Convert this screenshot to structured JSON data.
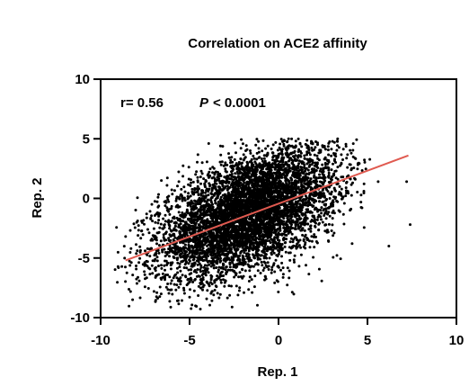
{
  "chart_data": {
    "type": "scatter",
    "title": "Correlation on ACE2 affinity",
    "xlabel": "Rep. 1",
    "ylabel": "Rep. 2",
    "xlim": [
      -10,
      10
    ],
    "ylim": [
      -10,
      10
    ],
    "xticks": [
      -10,
      -5,
      0,
      5,
      10
    ],
    "yticks": [
      -10,
      -5,
      0,
      5,
      10
    ],
    "annotation": {
      "r_label": "r= 0.56",
      "p_symbol": "P",
      "p_value": "< 0.0001"
    },
    "series": [
      {
        "color": "#000000",
        "approximate_point_count": 6000,
        "points": [
          [
            -8.2,
            -8.5
          ],
          [
            -7.9,
            -3.1
          ],
          [
            -7.5,
            -4.4
          ],
          [
            -7.0,
            -7.8
          ],
          [
            -6.8,
            -1.2
          ],
          [
            -6.4,
            -2.2
          ],
          [
            -6.0,
            -6.9
          ],
          [
            -5.6,
            1.4
          ],
          [
            -5.1,
            -0.4
          ],
          [
            -4.9,
            -5.7
          ],
          [
            -4.5,
            0.3
          ],
          [
            -4.2,
            -3.3
          ],
          [
            -3.9,
            2.2
          ],
          [
            -3.5,
            -6.8
          ],
          [
            -3.1,
            -1.7
          ],
          [
            -2.7,
            3.0
          ],
          [
            -2.3,
            -0.2
          ],
          [
            -2.0,
            -5.2
          ],
          [
            -1.6,
            1.5
          ],
          [
            -1.2,
            -2.6
          ],
          [
            -0.8,
            3.6
          ],
          [
            -0.4,
            -4.1
          ],
          [
            0.0,
            0.6
          ],
          [
            0.4,
            4.2
          ],
          [
            0.8,
            -1.9
          ],
          [
            1.2,
            2.4
          ],
          [
            1.6,
            3.9
          ],
          [
            2.1,
            -0.8
          ],
          [
            2.5,
            4.4
          ],
          [
            2.9,
            1.2
          ],
          [
            3.3,
            4.8
          ],
          [
            3.8,
            0.9
          ],
          [
            4.2,
            4.6
          ],
          [
            4.8,
            0.6
          ],
          [
            5.6,
            1.4
          ],
          [
            7.2,
            1.4
          ],
          [
            7.4,
            -2.2
          ],
          [
            6.2,
            -4.0
          ]
        ]
      }
    ],
    "fit_line": {
      "color": "#e05a50",
      "x": [
        -8.6,
        7.3
      ],
      "y": [
        -5.2,
        3.6
      ]
    }
  }
}
